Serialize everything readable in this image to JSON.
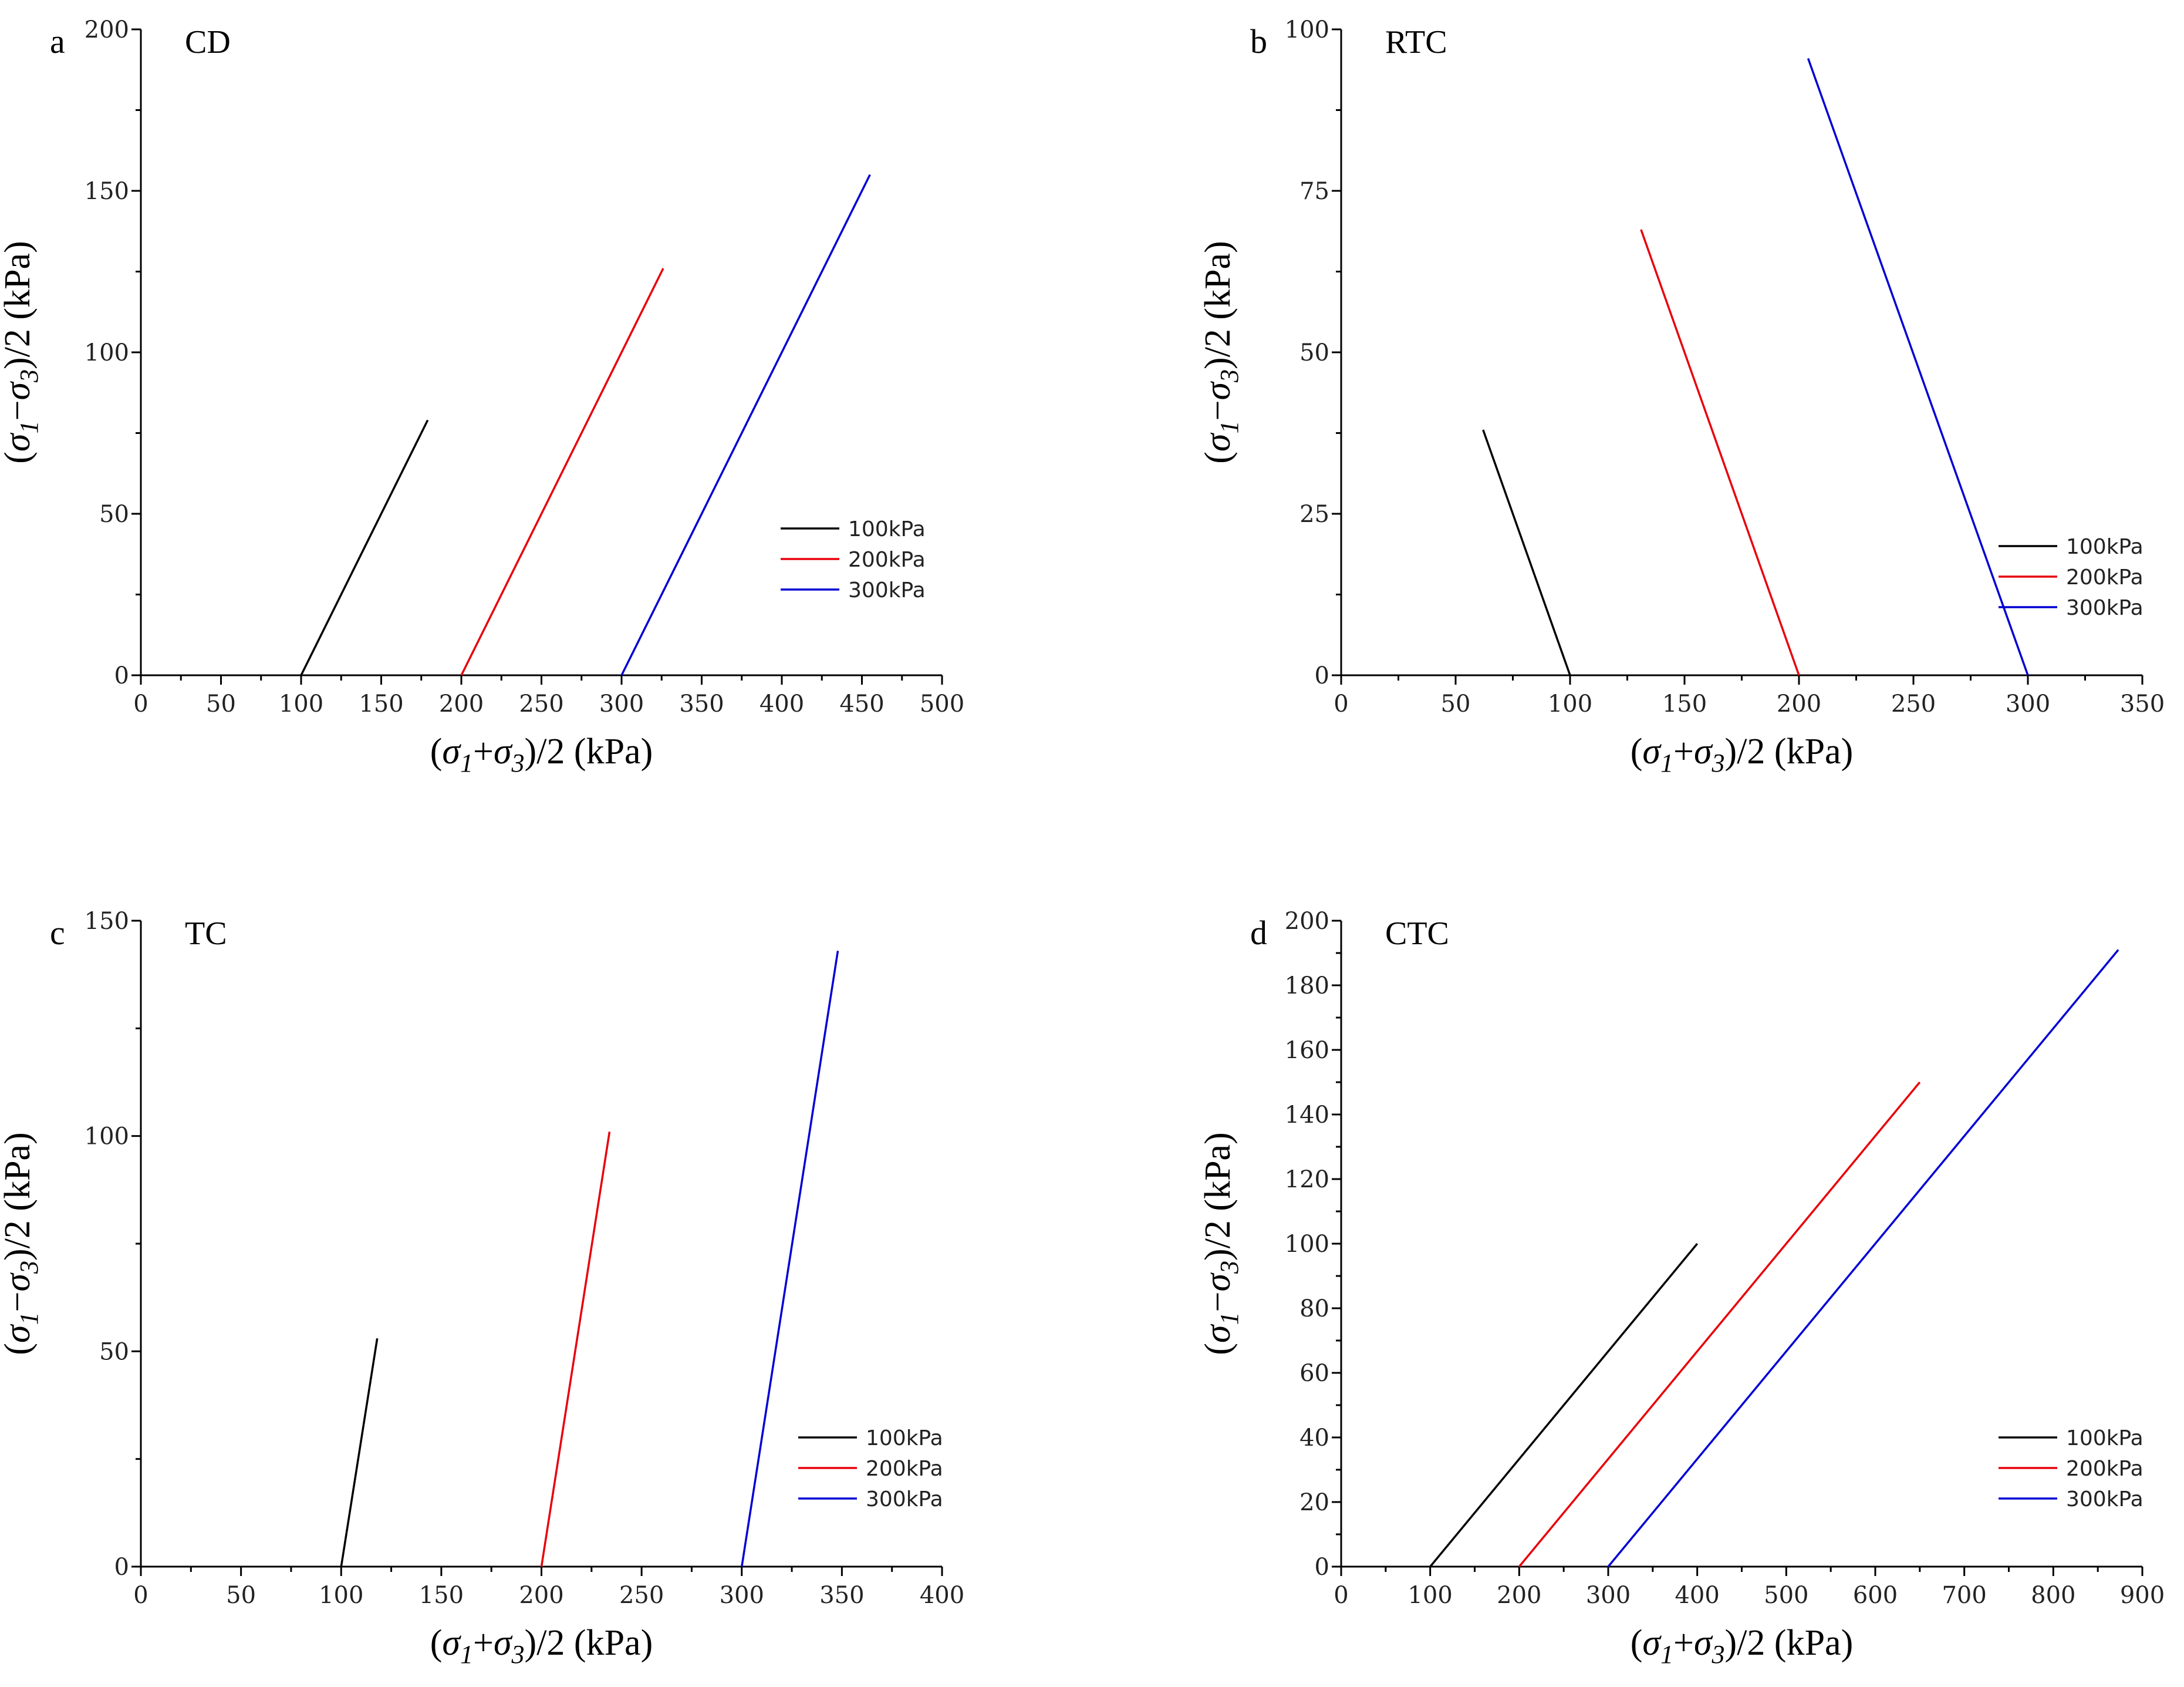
{
  "figure": {
    "axis_titles": {
      "x_prefix": "(",
      "y_prefix": "(",
      "sigma": "σ",
      "sub1": "1",
      "sub3": "3",
      "x_op": "+",
      "y_op": "−",
      "x_suffix": ")/2 (kPa)",
      "y_suffix": ")/2 (kPa)"
    }
  },
  "colors": {
    "100kPa": "#000000",
    "200kPa": "#e8000b",
    "300kPa": "#0000d4"
  },
  "chart_data": [
    {
      "id": "a",
      "letter": "a",
      "title": "CD",
      "type": "line",
      "xlabel": "(σ1+σ3)/2 (kPa)",
      "ylabel": "(σ1−σ3)/2 (kPa)",
      "xlim": [
        0,
        500
      ],
      "ylim": [
        0,
        200
      ],
      "xticks": [
        0,
        50,
        100,
        150,
        200,
        250,
        300,
        350,
        400,
        450,
        500
      ],
      "yticks": [
        0,
        50,
        100,
        150,
        200
      ],
      "legend": "right",
      "series": [
        {
          "name": "100kPa",
          "x": [
            100,
            179
          ],
          "y": [
            0,
            79
          ]
        },
        {
          "name": "200kPa",
          "x": [
            200,
            326
          ],
          "y": [
            0,
            126
          ]
        },
        {
          "name": "300kPa",
          "x": [
            300,
            455
          ],
          "y": [
            0,
            155
          ]
        }
      ]
    },
    {
      "id": "b",
      "letter": "b",
      "title": "RTC",
      "type": "line",
      "xlabel": "(σ1+σ3)/2 (kPa)",
      "ylabel": "(σ1−σ3)/2 (kPa)",
      "xlim": [
        0,
        350
      ],
      "ylim": [
        0,
        100
      ],
      "xticks": [
        0,
        50,
        100,
        150,
        200,
        250,
        300,
        350
      ],
      "yticks": [
        0,
        25,
        50,
        75,
        100
      ],
      "legend": "bottom-right",
      "series": [
        {
          "name": "100kPa",
          "x": [
            62,
            100
          ],
          "y": [
            38,
            0
          ]
        },
        {
          "name": "200kPa",
          "x": [
            131,
            200
          ],
          "y": [
            69,
            0
          ]
        },
        {
          "name": "300kPa",
          "x": [
            204,
            300
          ],
          "y": [
            95.5,
            0
          ]
        }
      ]
    },
    {
      "id": "c",
      "letter": "c",
      "title": "TC",
      "type": "line",
      "xlabel": "(σ1+σ3)/2 (kPa)",
      "ylabel": "(σ1−σ3)/2 (kPa)",
      "xlim": [
        0,
        400
      ],
      "ylim": [
        0,
        150
      ],
      "xticks": [
        0,
        50,
        100,
        150,
        200,
        250,
        300,
        350,
        400
      ],
      "yticks": [
        0,
        50,
        100,
        150
      ],
      "legend": "bottom-right",
      "series": [
        {
          "name": "100kPa",
          "x": [
            100,
            118
          ],
          "y": [
            0,
            53
          ]
        },
        {
          "name": "200kPa",
          "x": [
            200,
            234
          ],
          "y": [
            0,
            101
          ]
        },
        {
          "name": "300kPa",
          "x": [
            300,
            348
          ],
          "y": [
            0,
            143
          ]
        }
      ]
    },
    {
      "id": "d",
      "letter": "d",
      "title": "CTC",
      "type": "line",
      "xlabel": "(σ1+σ3)/2 (kPa)",
      "ylabel": "(σ1−σ3)/2 (kPa)",
      "xlim": [
        0,
        900
      ],
      "ylim": [
        0,
        200
      ],
      "xticks": [
        0,
        100,
        200,
        300,
        400,
        500,
        600,
        700,
        800,
        900
      ],
      "yticks": [
        0,
        20,
        40,
        60,
        80,
        100,
        120,
        140,
        160,
        180,
        200
      ],
      "legend": "bottom-right",
      "series": [
        {
          "name": "100kPa",
          "x": [
            100,
            400
          ],
          "y": [
            0,
            100
          ]
        },
        {
          "name": "200kPa",
          "x": [
            200,
            650
          ],
          "y": [
            0,
            150
          ]
        },
        {
          "name": "300kPa",
          "x": [
            300,
            873
          ],
          "y": [
            0,
            191
          ]
        }
      ]
    }
  ]
}
